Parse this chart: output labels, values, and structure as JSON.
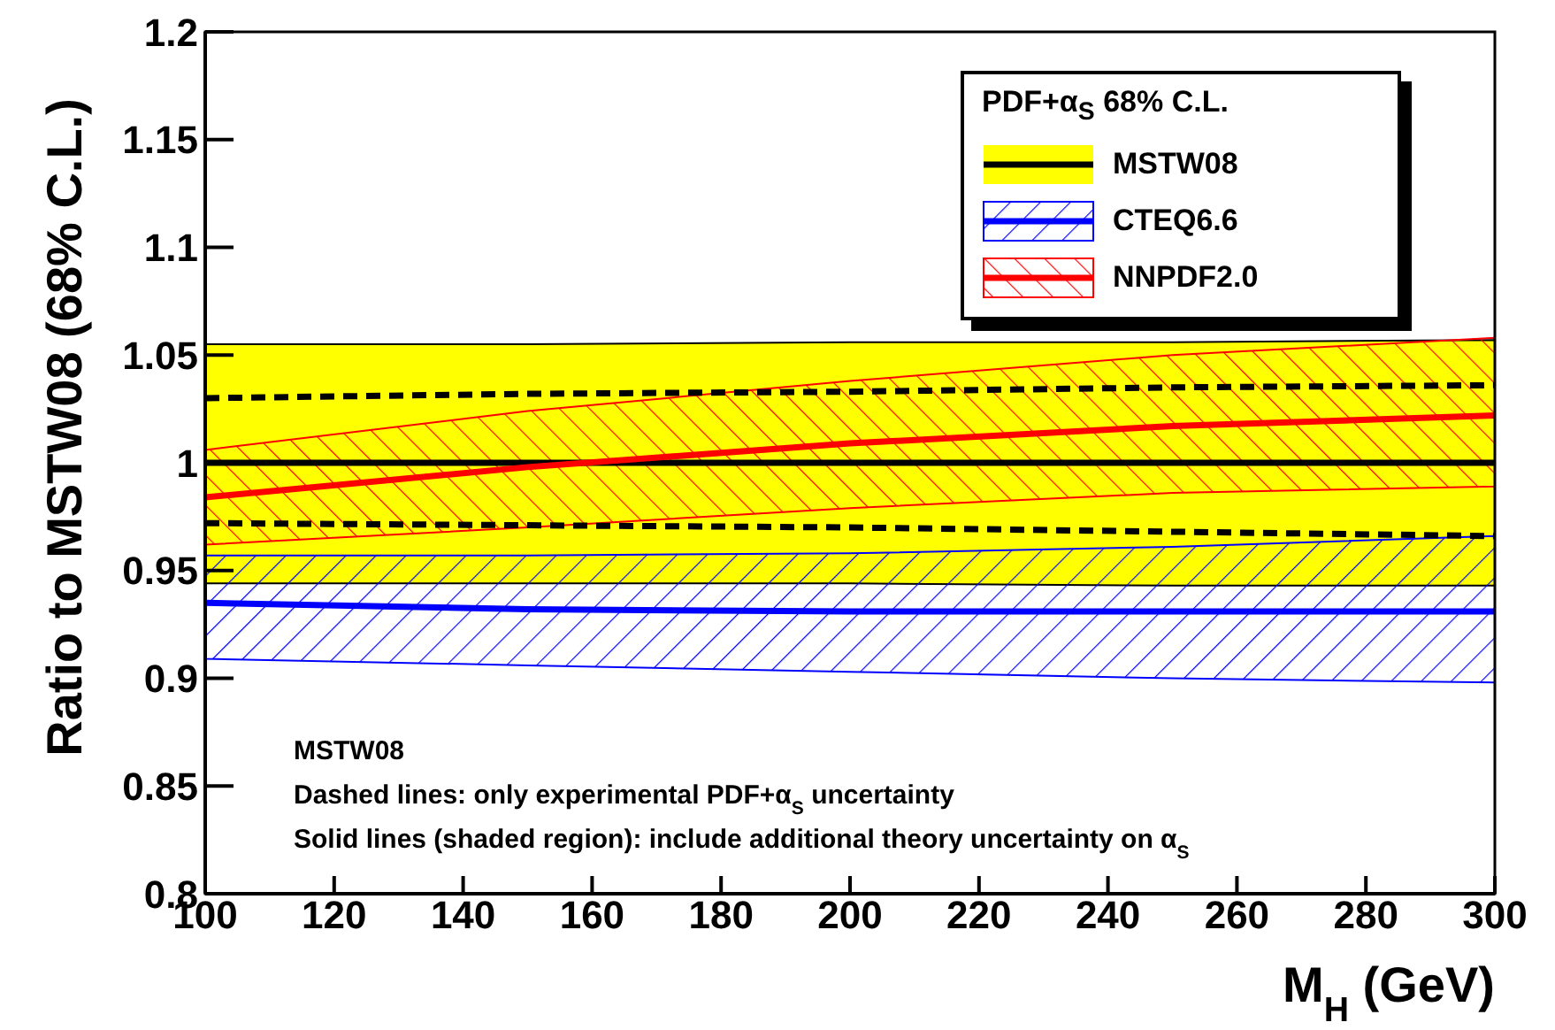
{
  "chart_data": {
    "type": "line",
    "xlabel": "M$_{H}$  (GeV)",
    "ylabel": "Ratio to MSTW08 (68% C.L.)",
    "legend_title": "PDF+α$_{S}$ 68% C.L.",
    "legend": "top right",
    "x": [
      100,
      150,
      200,
      250,
      300
    ],
    "xlim": [
      100,
      300
    ],
    "xticks": [
      100,
      120,
      140,
      160,
      180,
      200,
      220,
      240,
      260,
      280,
      300
    ],
    "ylim": [
      0.8,
      1.2
    ],
    "yticks": [
      0.8,
      0.85,
      0.9,
      0.95,
      1,
      1.05,
      1.1,
      1.15,
      1.2
    ],
    "grid": false,
    "marker": "none",
    "series": [
      {
        "name": "MSTW08",
        "color": "#000000",
        "values": [
          1,
          1,
          1,
          1,
          1
        ],
        "lower": [
          0.944,
          0.944,
          0.944,
          0.943,
          0.943
        ],
        "upper": [
          1.055,
          1.055,
          1.056,
          1.056,
          1.057
        ]
      },
      {
        "name": "CTEQ6.6",
        "color": "#0000ff",
        "values": [
          0.935,
          0.932,
          0.931,
          0.931,
          0.931
        ],
        "lower": [
          0.909,
          0.906,
          0.903,
          0.9,
          0.898
        ],
        "upper": [
          0.957,
          0.957,
          0.958,
          0.961,
          0.966
        ]
      },
      {
        "name": "NNPDF2.0",
        "color": "#ff0000",
        "values": [
          0.984,
          0.998,
          1.009,
          1.017,
          1.022
        ],
        "lower": [
          0.962,
          0.97,
          0.979,
          0.986,
          0.989
        ],
        "upper": [
          1.006,
          1.024,
          1.038,
          1.05,
          1.058
        ]
      },
      {
        "color": "#000000",
        "line_style": "dashed",
        "values": [
          1.03,
          1.032,
          1.033,
          1.035,
          1.036
        ]
      },
      {
        "color": "#000000",
        "line_style": "dashed",
        "values": [
          0.972,
          0.971,
          0.97,
          0.968,
          0.966
        ]
      }
    ],
    "annotations": [
      "MSTW08",
      "Dashed lines: only experimental PDF+α$_{S}$ uncertainty",
      "Solid lines (shaded region): include additional theory uncertainty on α$_{S}$"
    ]
  }
}
